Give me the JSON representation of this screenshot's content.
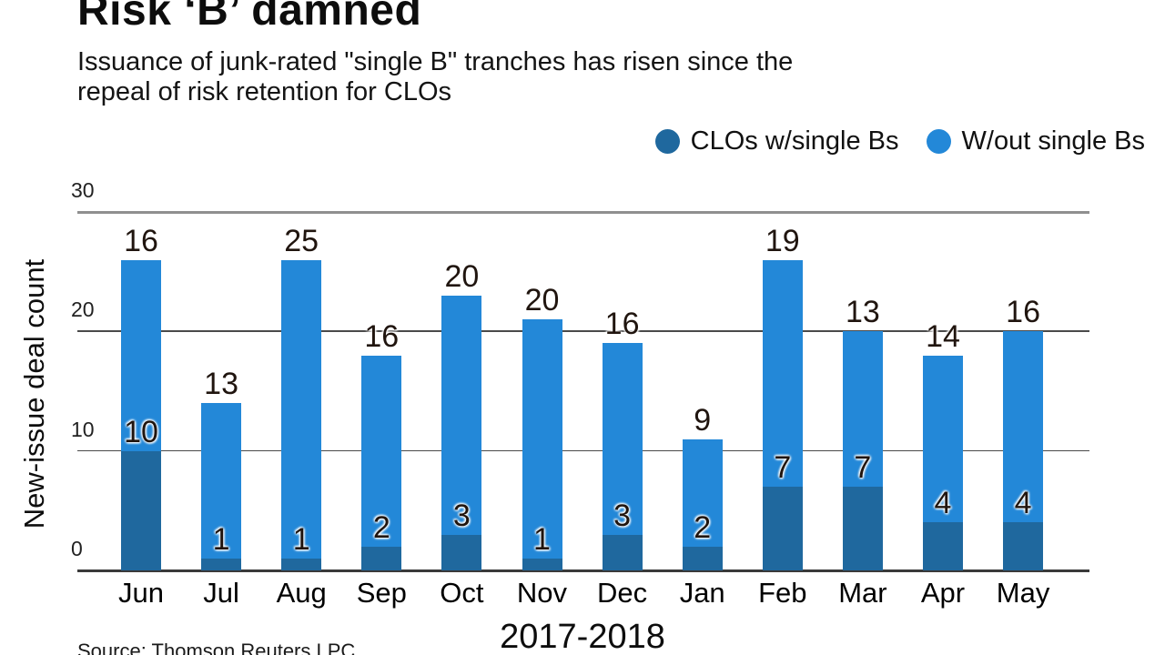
{
  "title": "Risk ‘B’ damned",
  "subtitle_line1": "Issuance of junk-rated \"single B\" tranches has risen since the",
  "subtitle_line2": "repeal of risk retention for CLOs",
  "legend": {
    "items": [
      {
        "label": "CLOs w/single Bs",
        "color": "#1f689e"
      },
      {
        "label": "W/out single Bs",
        "color": "#2388d8"
      }
    ]
  },
  "source": "Source: Thomson Reuters LPC",
  "colors": {
    "dark_blue": "#1f689e",
    "light_blue": "#2388d8",
    "grid_top": "#8f8f8f",
    "grid_mid": "#4a4a4a",
    "axis_base": "#3a3a3a",
    "label_text": "#20150f"
  },
  "chart_data": {
    "type": "bar",
    "subtype": "stacked-vertical",
    "title": "Risk ‘B’ damned",
    "subtitle": "Issuance of junk-rated \"single B\" tranches has risen since the repeal of risk retention for CLOs",
    "categories": [
      "Jun",
      "Jul",
      "Aug",
      "Sep",
      "Oct",
      "Nov",
      "Dec",
      "Jan",
      "Feb",
      "Mar",
      "Apr",
      "May"
    ],
    "series": [
      {
        "name": "CLOs w/single Bs",
        "color": "#1f689e",
        "values": [
          10,
          1,
          1,
          2,
          3,
          1,
          3,
          2,
          7,
          7,
          4,
          4
        ]
      },
      {
        "name": "W/out single Bs",
        "color": "#2388d8",
        "values": [
          16,
          13,
          25,
          16,
          20,
          20,
          16,
          9,
          19,
          13,
          14,
          16
        ]
      }
    ],
    "totals": [
      26,
      14,
      26,
      18,
      23,
      21,
      19,
      11,
      26,
      20,
      18,
      20
    ],
    "bar_labels": true,
    "xlabel": "2017-2018",
    "ylabel": "New-issue deal count",
    "yticks": [
      0,
      10,
      20,
      30
    ],
    "ylim": [
      0,
      30
    ],
    "grid": true,
    "legend_position": "top-right",
    "source": "Source: Thomson Reuters LPC"
  }
}
